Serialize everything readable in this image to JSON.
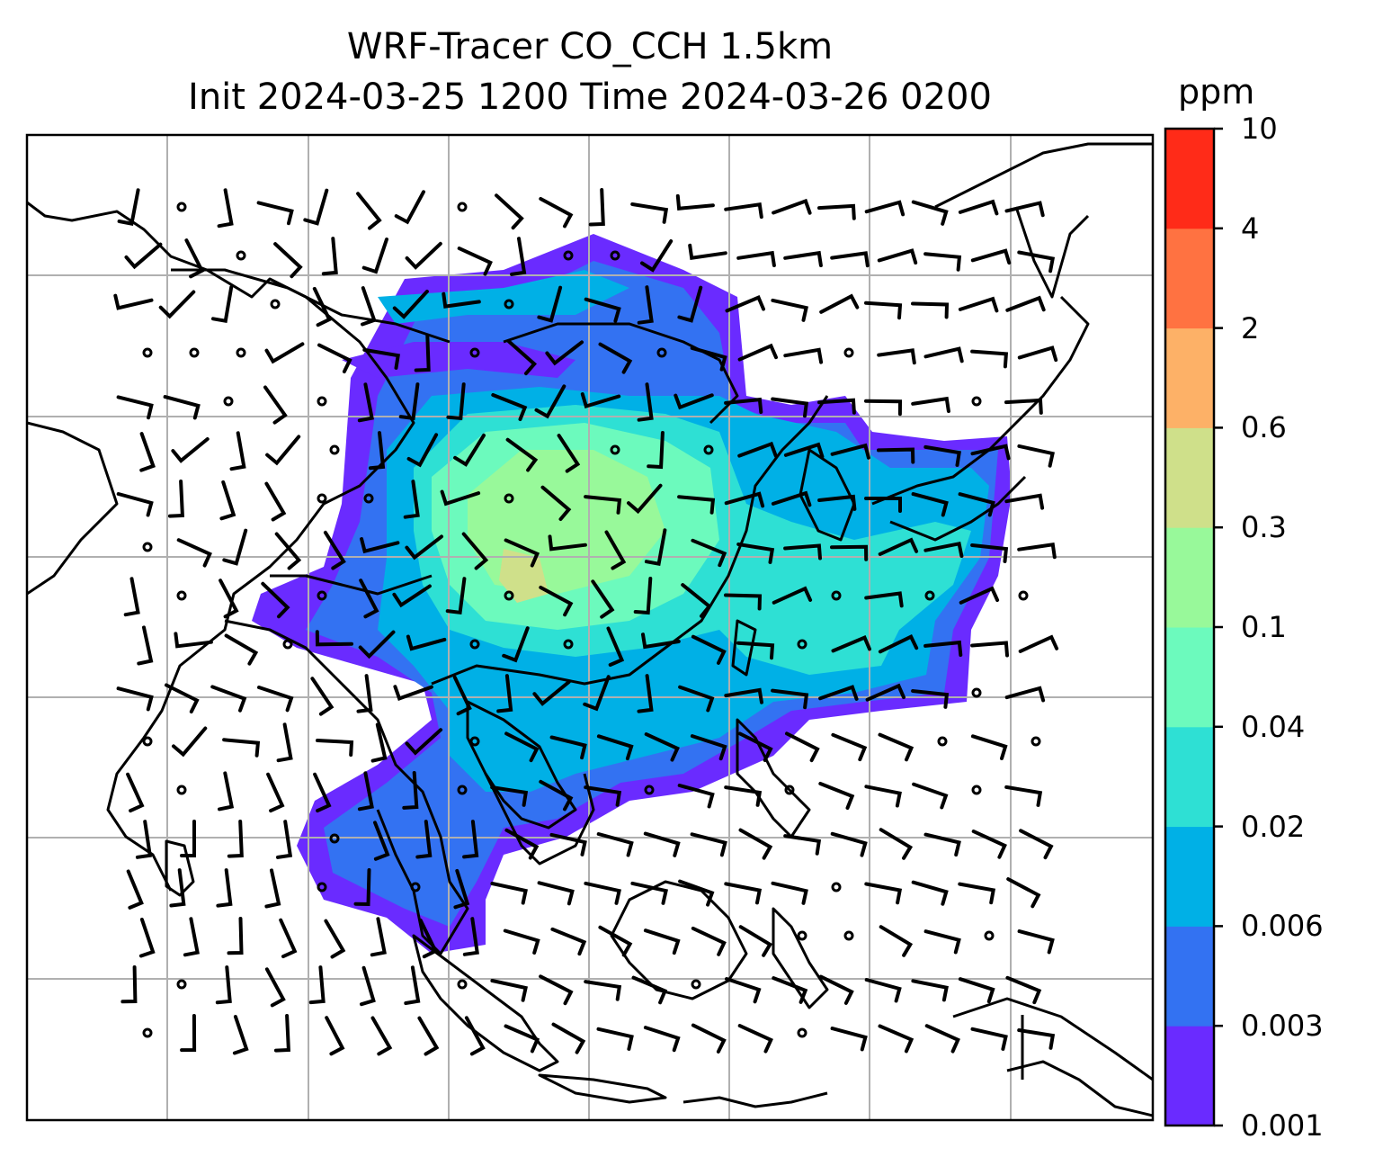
{
  "title_line1": "WRF-Tracer CO_CCH 1.5km",
  "title_line2": "Init 2024-03-25 1200 Time 2024-03-26 0200",
  "colorbar": {
    "unit": "ppm",
    "levels": [
      "0.001",
      "0.003",
      "0.006",
      "0.02",
      "0.04",
      "0.1",
      "0.3",
      "0.6",
      "2",
      "4",
      "10"
    ],
    "colors": [
      "#6a2bff",
      "#3372f2",
      "#00b0e6",
      "#2ee0d4",
      "#6cfabd",
      "#98f99a",
      "#cfe08a",
      "#fdb167",
      "#ff7241",
      "#ff2b18"
    ]
  },
  "map": {
    "frame_color": "#000000",
    "grid_color": "#b0b0b0",
    "coastline_color": "#000000",
    "wind_barb_color": "#000000"
  }
}
